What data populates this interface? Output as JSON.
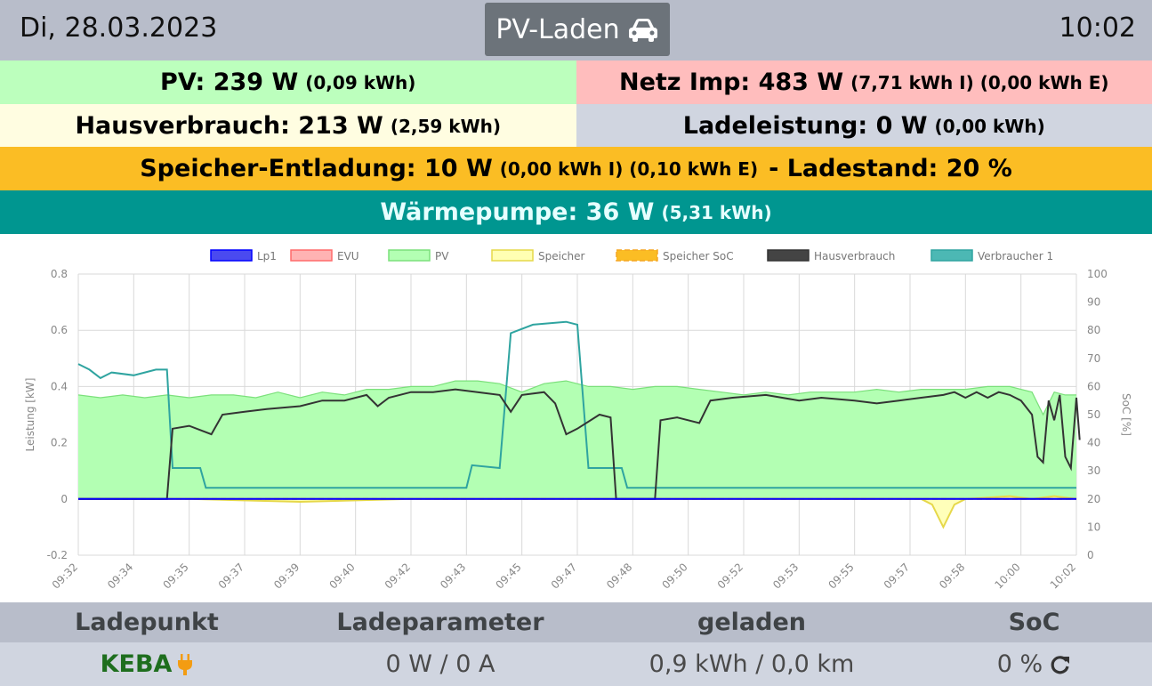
{
  "header": {
    "date": "Di, 28.03.2023",
    "mode_label": "PV-Laden",
    "mode_icon": "car-icon",
    "time": "10:02"
  },
  "summary": {
    "pv": {
      "label": "PV: 239 W",
      "detail": "(0,09 kWh)"
    },
    "netz": {
      "label": "Netz Imp: 483 W",
      "detail": "(7,71 kWh I) (0,00 kWh E)"
    },
    "haus": {
      "label": "Hausverbrauch: 213 W",
      "detail": "(2,59 kWh)"
    },
    "lade": {
      "label": "Ladeleistung: 0 W",
      "detail": "(0,00 kWh)"
    },
    "speicher": {
      "label": "Speicher-Entladung: 10 W",
      "detail": "(0,00 kWh I) (0,10 kWh E)",
      "suffix": "- Ladestand: 20 %"
    },
    "waerme": {
      "label": "Wärmepumpe: 36 W",
      "detail": "(5,31 kWh)"
    }
  },
  "colors": {
    "pv_bg": "#bcffbd",
    "netz_bg": "#ffbdbd",
    "haus_bg": "#fffde1",
    "lade_bg": "#d0d5e0",
    "speicher_bg": "#fbbd24",
    "waerme_bg": "#009690"
  },
  "chart_data": {
    "type": "line",
    "legend_position": "top",
    "grid": true,
    "ylabel": "Leistung [kW]",
    "y2label": "SoC [%]",
    "ylim": [
      -0.2,
      0.8
    ],
    "y2lim": [
      0,
      100
    ],
    "y_ticks": [
      "-0.2",
      "0",
      "0.2",
      "0.4",
      "0.6",
      "0.8"
    ],
    "y2_ticks": [
      "0",
      "10",
      "20",
      "30",
      "40",
      "50",
      "60",
      "70",
      "80",
      "90",
      "100"
    ],
    "x_ticks": [
      "09:32",
      "09:34",
      "09:35",
      "09:37",
      "09:39",
      "09:40",
      "09:42",
      "09:43",
      "09:45",
      "09:47",
      "09:48",
      "09:50",
      "09:52",
      "09:53",
      "09:55",
      "09:57",
      "09:58",
      "10:00",
      "10:02"
    ],
    "series": [
      {
        "name": "Lp1",
        "color": "#0000ff",
        "fill": "#4a4af0",
        "axis": "left",
        "values": [
          [
            0,
            0.0
          ],
          [
            90,
            0.0
          ]
        ]
      },
      {
        "name": "EVU",
        "color": "#ff6b6b",
        "fill": "#ffb3b3",
        "axis": "left",
        "values": [
          [
            0,
            0.0
          ],
          [
            90,
            0.0
          ]
        ]
      },
      {
        "name": "PV",
        "color": "#7be07b",
        "fill": "#b3ffb3",
        "axis": "left",
        "filled": true,
        "values": [
          [
            0,
            0.37
          ],
          [
            2,
            0.36
          ],
          [
            4,
            0.37
          ],
          [
            6,
            0.36
          ],
          [
            8,
            0.37
          ],
          [
            10,
            0.36
          ],
          [
            12,
            0.37
          ],
          [
            14,
            0.37
          ],
          [
            16,
            0.36
          ],
          [
            18,
            0.38
          ],
          [
            20,
            0.36
          ],
          [
            22,
            0.38
          ],
          [
            24,
            0.37
          ],
          [
            26,
            0.39
          ],
          [
            28,
            0.39
          ],
          [
            30,
            0.4
          ],
          [
            32,
            0.4
          ],
          [
            34,
            0.42
          ],
          [
            36,
            0.42
          ],
          [
            38,
            0.41
          ],
          [
            40,
            0.38
          ],
          [
            42,
            0.41
          ],
          [
            44,
            0.42
          ],
          [
            46,
            0.4
          ],
          [
            48,
            0.4
          ],
          [
            50,
            0.39
          ],
          [
            52,
            0.4
          ],
          [
            54,
            0.4
          ],
          [
            56,
            0.39
          ],
          [
            58,
            0.38
          ],
          [
            60,
            0.37
          ],
          [
            62,
            0.38
          ],
          [
            64,
            0.37
          ],
          [
            66,
            0.38
          ],
          [
            68,
            0.38
          ],
          [
            70,
            0.38
          ],
          [
            72,
            0.39
          ],
          [
            74,
            0.38
          ],
          [
            76,
            0.39
          ],
          [
            78,
            0.39
          ],
          [
            80,
            0.39
          ],
          [
            82,
            0.4
          ],
          [
            84,
            0.4
          ],
          [
            86,
            0.38
          ],
          [
            87,
            0.3
          ],
          [
            88,
            0.38
          ],
          [
            89,
            0.37
          ],
          [
            90,
            0.37
          ]
        ]
      },
      {
        "name": "Speicher",
        "color": "#e6d84a",
        "fill": "#ffffb3",
        "axis": "left",
        "values": [
          [
            0,
            0.0
          ],
          [
            10,
            0.0
          ],
          [
            20,
            -0.01
          ],
          [
            30,
            0.0
          ],
          [
            40,
            0.0
          ],
          [
            50,
            0.0
          ],
          [
            60,
            0.0
          ],
          [
            70,
            0.0
          ],
          [
            76,
            0.0
          ],
          [
            77,
            -0.02
          ],
          [
            78,
            -0.1
          ],
          [
            79,
            -0.02
          ],
          [
            80,
            0.0
          ],
          [
            84,
            0.01
          ],
          [
            86,
            0.0
          ],
          [
            88,
            0.01
          ],
          [
            90,
            0.0
          ]
        ]
      },
      {
        "name": "Speicher SoC",
        "color": "#f5a623",
        "fill": "#fbbd24",
        "axis": "right",
        "dashed": true,
        "values": [
          [
            0,
            20
          ],
          [
            90,
            20
          ]
        ]
      },
      {
        "name": "Hausverbrauch",
        "color": "#333333",
        "fill": "#444444",
        "axis": "left",
        "values": [
          [
            0,
            0.0
          ],
          [
            8,
            0.0
          ],
          [
            8.5,
            0.25
          ],
          [
            10,
            0.26
          ],
          [
            12,
            0.23
          ],
          [
            13,
            0.3
          ],
          [
            15,
            0.31
          ],
          [
            17,
            0.32
          ],
          [
            20,
            0.33
          ],
          [
            22,
            0.35
          ],
          [
            24,
            0.35
          ],
          [
            26,
            0.37
          ],
          [
            27,
            0.33
          ],
          [
            28,
            0.36
          ],
          [
            30,
            0.38
          ],
          [
            32,
            0.38
          ],
          [
            34,
            0.39
          ],
          [
            36,
            0.38
          ],
          [
            38,
            0.37
          ],
          [
            39,
            0.31
          ],
          [
            40,
            0.37
          ],
          [
            42,
            0.38
          ],
          [
            43,
            0.34
          ],
          [
            44,
            0.23
          ],
          [
            45,
            0.25
          ],
          [
            47,
            0.3
          ],
          [
            48,
            0.29
          ],
          [
            48.5,
            0.0
          ],
          [
            52,
            0.0
          ],
          [
            52.5,
            0.28
          ],
          [
            54,
            0.29
          ],
          [
            56,
            0.27
          ],
          [
            57,
            0.35
          ],
          [
            59,
            0.36
          ],
          [
            62,
            0.37
          ],
          [
            65,
            0.35
          ],
          [
            67,
            0.36
          ],
          [
            70,
            0.35
          ],
          [
            72,
            0.34
          ],
          [
            74,
            0.35
          ],
          [
            76,
            0.36
          ],
          [
            78,
            0.37
          ],
          [
            79,
            0.38
          ],
          [
            80,
            0.36
          ],
          [
            81,
            0.38
          ],
          [
            82,
            0.36
          ],
          [
            83,
            0.38
          ],
          [
            84,
            0.37
          ],
          [
            85,
            0.35
          ],
          [
            86,
            0.3
          ],
          [
            86.5,
            0.15
          ],
          [
            87,
            0.13
          ],
          [
            87.5,
            0.35
          ],
          [
            88,
            0.28
          ],
          [
            88.5,
            0.37
          ],
          [
            89,
            0.15
          ],
          [
            89.5,
            0.11
          ],
          [
            90,
            0.36
          ],
          [
            90.3,
            0.21
          ]
        ]
      },
      {
        "name": "Verbraucher 1",
        "color": "#2fa4a0",
        "fill": "#4cb8b4",
        "axis": "left",
        "values": [
          [
            0,
            0.48
          ],
          [
            1,
            0.46
          ],
          [
            2,
            0.43
          ],
          [
            3,
            0.45
          ],
          [
            5,
            0.44
          ],
          [
            6,
            0.45
          ],
          [
            7,
            0.46
          ],
          [
            8,
            0.46
          ],
          [
            8.5,
            0.11
          ],
          [
            11,
            0.11
          ],
          [
            11.5,
            0.04
          ],
          [
            18,
            0.04
          ],
          [
            30,
            0.04
          ],
          [
            35,
            0.04
          ],
          [
            35.5,
            0.12
          ],
          [
            38,
            0.11
          ],
          [
            39,
            0.59
          ],
          [
            41,
            0.62
          ],
          [
            44,
            0.63
          ],
          [
            45,
            0.62
          ],
          [
            46,
            0.11
          ],
          [
            49,
            0.11
          ],
          [
            49.5,
            0.04
          ],
          [
            60,
            0.04
          ],
          [
            70,
            0.04
          ],
          [
            80,
            0.04
          ],
          [
            90,
            0.04
          ]
        ]
      }
    ]
  },
  "table": {
    "headers": [
      "Ladepunkt",
      "Ladeparameter",
      "geladen",
      "SoC"
    ],
    "row": {
      "name": "KEBA",
      "name_icon": "plug-icon",
      "params": "0 W / 0 A",
      "charged": "0,9 kWh / 0,0 km",
      "soc": "0 %",
      "soc_icon": "refresh-icon"
    }
  }
}
